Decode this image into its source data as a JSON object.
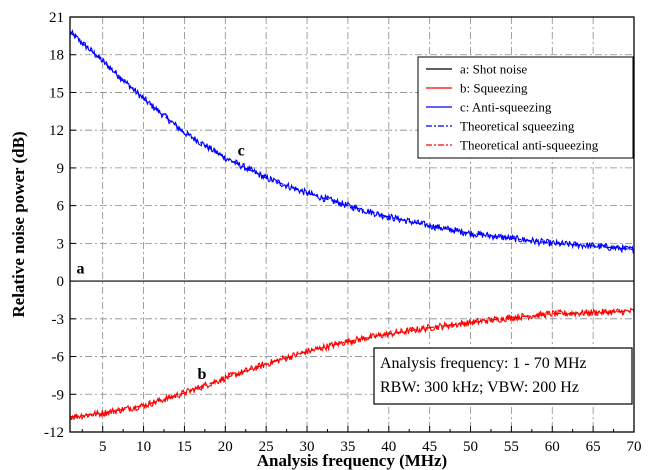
{
  "chart_data": {
    "type": "line",
    "xlabel": "Analysis frequency (MHz)",
    "ylabel": "Relative noise power (dB)",
    "xlim": [
      1,
      70
    ],
    "ylim": [
      -12,
      21
    ],
    "x_ticks": [
      5,
      10,
      15,
      20,
      25,
      30,
      35,
      40,
      45,
      50,
      55,
      60,
      65,
      70
    ],
    "y_ticks": [
      -12,
      -9,
      -6,
      -3,
      0,
      3,
      6,
      9,
      12,
      15,
      18,
      21
    ],
    "grid": true,
    "legend_position": "top-right",
    "series": [
      {
        "name": "a: Shot noise",
        "color": "#000000",
        "style": "solid",
        "x": [
          1,
          70
        ],
        "y": [
          0,
          0
        ]
      },
      {
        "name": "b: Squeezing",
        "color": "#ff0000",
        "style": "solid",
        "x": [
          1,
          5,
          10,
          15,
          20,
          25,
          30,
          35,
          40,
          45,
          50,
          55,
          60,
          65,
          70
        ],
        "y": [
          -10.8,
          -10.5,
          -9.9,
          -8.9,
          -7.7,
          -6.6,
          -5.6,
          -4.8,
          -4.2,
          -3.7,
          -3.3,
          -2.9,
          -2.6,
          -2.5,
          -2.4
        ]
      },
      {
        "name": "c: Anti-squeezing",
        "color": "#0000ff",
        "style": "solid",
        "x": [
          1,
          5,
          10,
          15,
          20,
          25,
          30,
          35,
          40,
          45,
          50,
          55,
          60,
          65,
          70
        ],
        "y": [
          19.8,
          17.5,
          14.5,
          11.8,
          9.8,
          8.2,
          7.0,
          6.0,
          5.1,
          4.4,
          3.8,
          3.4,
          3.0,
          2.8,
          2.5
        ]
      },
      {
        "name": "Theoretical squeezing",
        "color": "#0000ff",
        "style": "dashdot",
        "x": [
          1,
          5,
          10,
          15,
          20,
          25,
          30,
          35,
          40,
          45,
          50,
          55,
          60,
          65,
          70
        ],
        "y": [
          19.8,
          17.5,
          14.5,
          11.8,
          9.8,
          8.2,
          7.0,
          6.0,
          5.1,
          4.4,
          3.8,
          3.4,
          3.0,
          2.8,
          2.5
        ]
      },
      {
        "name": "Theoretical anti-squeezing",
        "color": "#ff0000",
        "style": "dashdot",
        "x": [
          1,
          5,
          10,
          15,
          20,
          25,
          30,
          35,
          40,
          45,
          50,
          55,
          60,
          65,
          70
        ],
        "y": [
          -10.8,
          -10.5,
          -9.9,
          -8.9,
          -7.7,
          -6.6,
          -5.6,
          -4.8,
          -4.2,
          -3.7,
          -3.3,
          -2.9,
          -2.6,
          -2.5,
          -2.4
        ]
      }
    ],
    "annotations": [
      {
        "text": "a",
        "x": 1.8,
        "y": 0.6
      },
      {
        "text": "b",
        "x": 16.6,
        "y": -7.8
      },
      {
        "text": "c",
        "x": 21.5,
        "y": 10.0
      }
    ],
    "info_box": [
      "Analysis frequency: 1 - 70 MHz",
      "RBW: 300 kHz; VBW: 200 Hz"
    ]
  }
}
